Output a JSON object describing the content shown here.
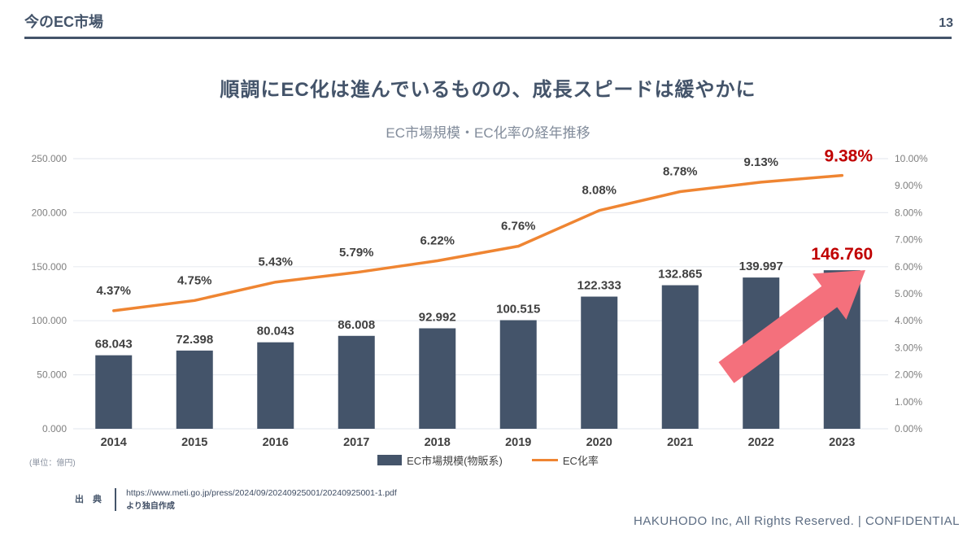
{
  "header": {
    "title": "今のEC市場",
    "page_number": "13"
  },
  "headline": "順調にEC化は進んでいるものの、成長スピードは緩やかに",
  "chart_data": {
    "type": "bar+line combo",
    "title": "EC市場規模・EC化率の経年推移",
    "categories": [
      "2014",
      "2015",
      "2016",
      "2017",
      "2018",
      "2019",
      "2020",
      "2021",
      "2022",
      "2023"
    ],
    "series": [
      {
        "name": "EC市場規模(物販系)",
        "type": "bar",
        "axis": "left",
        "values": [
          68043,
          72398,
          80043,
          86008,
          92992,
          100515,
          122333,
          132865,
          139997,
          146760
        ],
        "labels": [
          "68.043",
          "72.398",
          "80.043",
          "86.008",
          "92.992",
          "100.515",
          "122.333",
          "132.865",
          "139.997",
          "146.760"
        ],
        "color": "#44546A"
      },
      {
        "name": "EC化率",
        "type": "line",
        "axis": "right",
        "values": [
          4.37,
          4.75,
          5.43,
          5.79,
          6.22,
          6.76,
          8.08,
          8.78,
          9.13,
          9.38
        ],
        "labels": [
          "4.37%",
          "4.75%",
          "5.43%",
          "5.79%",
          "6.22%",
          "6.76%",
          "8.08%",
          "8.78%",
          "9.13%",
          "9.38%"
        ],
        "color": "#EF8532"
      }
    ],
    "left_axis": {
      "min": 0,
      "max": 250000,
      "ticks": [
        "0.000",
        "50.000",
        "100.000",
        "150.000",
        "200.000",
        "250.000"
      ]
    },
    "right_axis": {
      "min": 0,
      "max": 10,
      "ticks": [
        "0.00%",
        "1.00%",
        "2.00%",
        "3.00%",
        "4.00%",
        "5.00%",
        "6.00%",
        "7.00%",
        "8.00%",
        "9.00%",
        "10.00%"
      ]
    },
    "grid": "horizontal, light",
    "legend_position": "bottom-center",
    "highlight": {
      "last_point_color": "#C00000",
      "highlighted_bar_label": "146.760",
      "highlighted_line_label": "9.38%"
    },
    "annotations": {
      "trend_arrow": {
        "from": [
          893,
          458
        ],
        "to": [
          1064,
          332
        ],
        "color": "#F4707C"
      }
    },
    "label_color": "#404040",
    "axis_tick_color": "#7F7F7F",
    "gridline_color": "#E8EBF1"
  },
  "unit_note": "(単位：億円)",
  "source": {
    "label": "出 典",
    "url": "https://www.meti.go.jp/press/2024/09/20240925001/20240925001-1.pdf",
    "note": "より独自作成"
  },
  "footer": "HAKUHODO Inc, All Rights Reserved. | CONFIDENTIAL"
}
